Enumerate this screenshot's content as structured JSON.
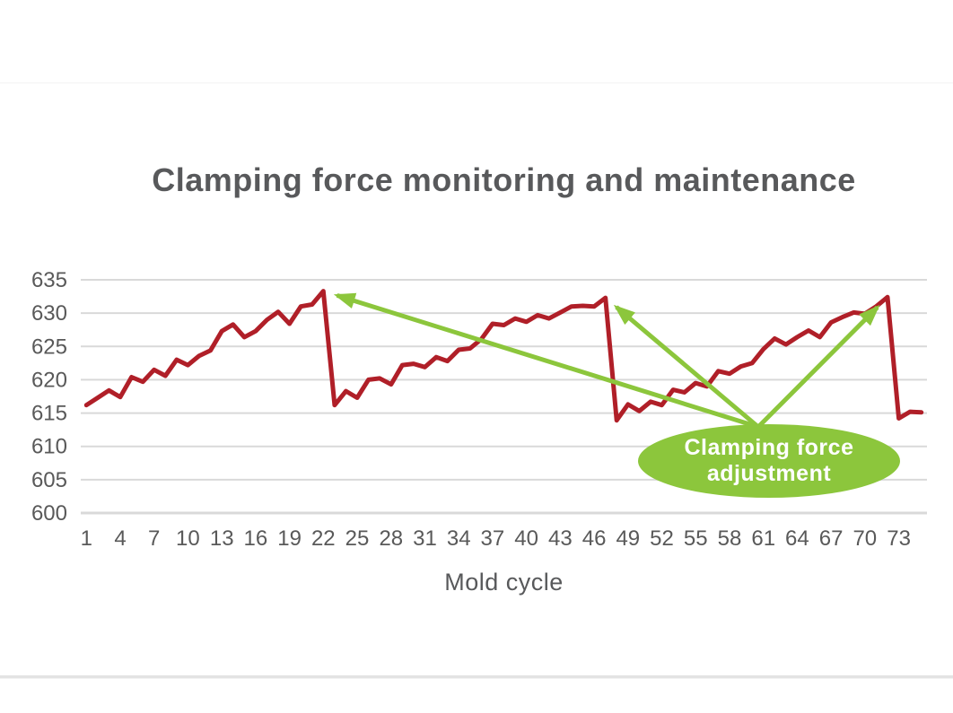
{
  "chart_data": {
    "type": "line",
    "title": "Clamping force monitoring and maintenance",
    "xlabel": "Mold cycle",
    "ylabel": "",
    "x_start": 1,
    "values": [
      616.2,
      617.3,
      618.4,
      617.4,
      620.4,
      619.7,
      621.5,
      620.6,
      623.0,
      622.2,
      623.6,
      624.4,
      627.3,
      628.3,
      626.4,
      627.3,
      629.0,
      630.2,
      628.4,
      631.0,
      631.3,
      633.3,
      616.2,
      618.3,
      617.3,
      620.0,
      620.2,
      619.3,
      622.2,
      622.4,
      621.9,
      623.4,
      622.8,
      624.5,
      624.7,
      626.1,
      628.4,
      628.2,
      629.2,
      628.7,
      629.7,
      629.2,
      630.1,
      631.0,
      631.1,
      631.0,
      632.3,
      613.9,
      616.3,
      615.3,
      616.7,
      616.2,
      618.5,
      618.1,
      619.5,
      619.0,
      621.3,
      620.9,
      622.0,
      622.5,
      624.6,
      626.2,
      625.3,
      626.4,
      627.4,
      626.4,
      628.6,
      629.4,
      630.1,
      629.9,
      631.0,
      632.4,
      614.2,
      615.2,
      615.1
    ],
    "ylim": [
      600,
      635
    ],
    "ytick_interval": 5,
    "xtick_labels": [
      1,
      4,
      7,
      10,
      13,
      16,
      19,
      22,
      25,
      28,
      31,
      34,
      37,
      40,
      43,
      46,
      49,
      52,
      55,
      58,
      61,
      64,
      67,
      70,
      73
    ],
    "grid": true,
    "legend": false,
    "line_color": "#b01f28",
    "gridline_color": "#d9d9d9",
    "axis_text_color": "#595959",
    "title_color": "#58595b",
    "annotations": [
      {
        "text": "Clamping force adjustment",
        "shape": "ellipse",
        "fill": "#8cc63c",
        "text_color": "#ffffff",
        "points_to_cycles": [
          22,
          47,
          72
        ]
      }
    ]
  }
}
